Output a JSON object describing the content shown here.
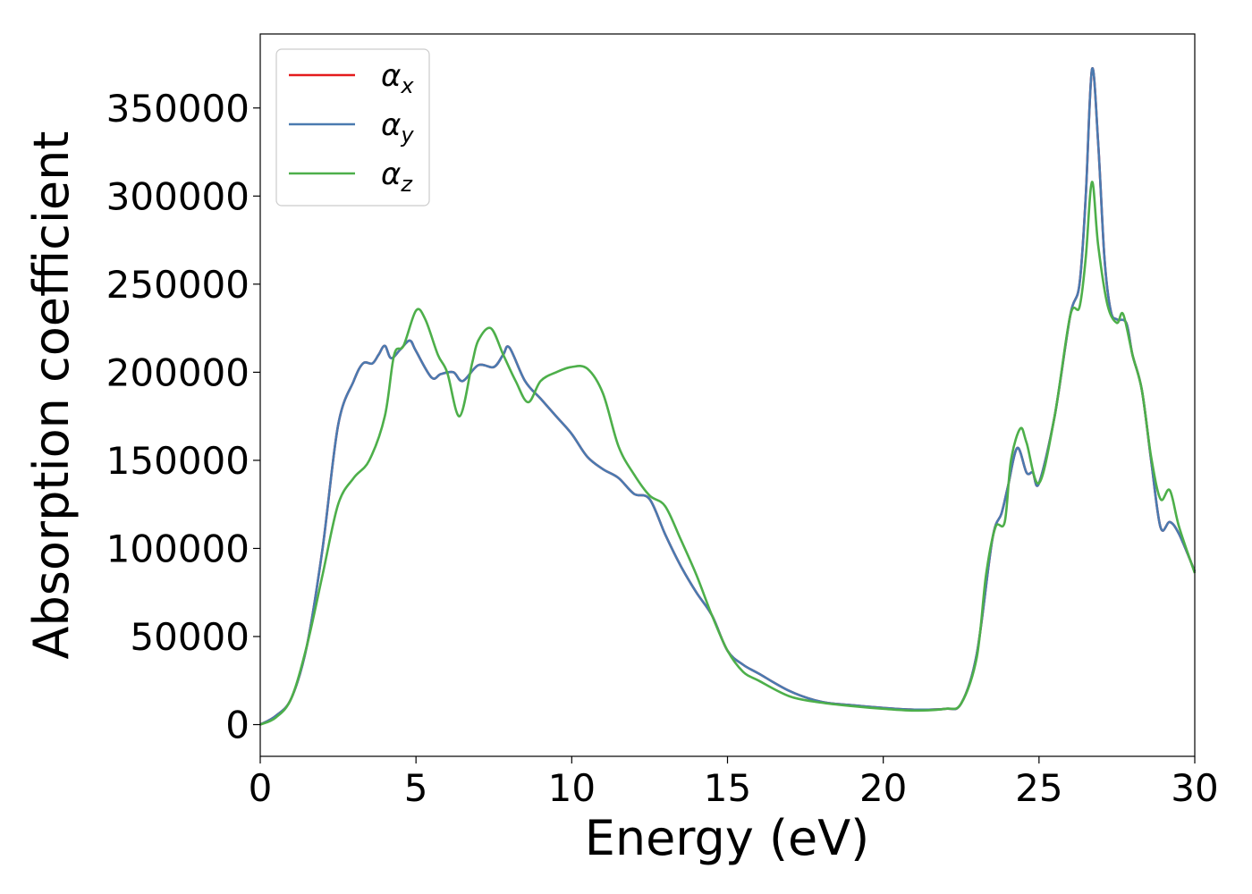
{
  "chart_data": {
    "type": "line",
    "xlabel": "Energy (eV)",
    "ylabel": "Absorption coefficient",
    "xlim": [
      0,
      30
    ],
    "ylim": [
      -18000,
      392000
    ],
    "xticks": [
      0,
      5,
      10,
      15,
      20,
      25,
      30
    ],
    "yticks": [
      0,
      50000,
      100000,
      150000,
      200000,
      250000,
      300000,
      350000
    ],
    "xtick_labels": [
      "0",
      "5",
      "10",
      "15",
      "20",
      "25",
      "30"
    ],
    "ytick_labels": [
      "0",
      "50000",
      "100000",
      "150000",
      "200000",
      "250000",
      "300000",
      "350000"
    ],
    "grid": false,
    "legend_position": "top-left",
    "series": [
      {
        "name": "αx",
        "symbol": "α",
        "subscript": "x",
        "color": "#e41a1c",
        "x": [
          0,
          0.5,
          1.0,
          1.5,
          2.0,
          2.5,
          3.0,
          3.3,
          3.6,
          3.8,
          4.0,
          4.2,
          4.5,
          4.8,
          5.0,
          5.5,
          5.8,
          6.2,
          6.5,
          7.0,
          7.5,
          7.8,
          8.0,
          8.5,
          9.0,
          9.5,
          10.0,
          10.5,
          11.0,
          11.5,
          12.0,
          12.5,
          13.0,
          13.5,
          14.0,
          14.5,
          15.0,
          15.5,
          16.0,
          17.0,
          18.0,
          19.0,
          20.0,
          21.0,
          22.0,
          22.5,
          23.0,
          23.5,
          23.8,
          24.0,
          24.3,
          24.6,
          24.8,
          25.0,
          25.5,
          26.0,
          26.3,
          26.5,
          26.7,
          26.9,
          27.1,
          27.3,
          27.5,
          27.8,
          28.0,
          28.3,
          28.6,
          28.9,
          29.2,
          29.5,
          30.0
        ],
        "y": [
          0,
          5000,
          15000,
          45000,
          100000,
          170000,
          195000,
          205000,
          205000,
          210000,
          215000,
          208000,
          213000,
          218000,
          212000,
          197000,
          199000,
          200000,
          195000,
          204000,
          203000,
          210000,
          214000,
          195000,
          185000,
          175000,
          165000,
          152000,
          145000,
          140000,
          131000,
          128000,
          108000,
          90000,
          75000,
          62000,
          42000,
          34000,
          29000,
          19000,
          13000,
          11000,
          9500,
          8500,
          9000,
          12000,
          40000,
          105000,
          120000,
          135000,
          157000,
          143000,
          143000,
          137000,
          175000,
          232000,
          250000,
          300000,
          372000,
          330000,
          265000,
          235000,
          230000,
          228000,
          210000,
          190000,
          150000,
          112000,
          115000,
          108000,
          87000
        ]
      },
      {
        "name": "αy",
        "symbol": "α",
        "subscript": "y",
        "color": "#4a7ab0",
        "x": [
          0,
          0.5,
          1.0,
          1.5,
          2.0,
          2.5,
          3.0,
          3.3,
          3.6,
          3.8,
          4.0,
          4.2,
          4.5,
          4.8,
          5.0,
          5.5,
          5.8,
          6.2,
          6.5,
          7.0,
          7.5,
          7.8,
          8.0,
          8.5,
          9.0,
          9.5,
          10.0,
          10.5,
          11.0,
          11.5,
          12.0,
          12.5,
          13.0,
          13.5,
          14.0,
          14.5,
          15.0,
          15.5,
          16.0,
          17.0,
          18.0,
          19.0,
          20.0,
          21.0,
          22.0,
          22.5,
          23.0,
          23.5,
          23.8,
          24.0,
          24.3,
          24.6,
          24.8,
          25.0,
          25.5,
          26.0,
          26.3,
          26.5,
          26.7,
          26.9,
          27.1,
          27.3,
          27.5,
          27.8,
          28.0,
          28.3,
          28.6,
          28.9,
          29.2,
          29.5,
          30.0
        ],
        "y": [
          0,
          5000,
          15000,
          45000,
          100000,
          170000,
          195000,
          205000,
          205000,
          210000,
          215000,
          208000,
          213000,
          218000,
          212000,
          197000,
          199000,
          200000,
          195000,
          204000,
          203000,
          210000,
          214000,
          195000,
          185000,
          175000,
          165000,
          152000,
          145000,
          140000,
          131000,
          128000,
          108000,
          90000,
          75000,
          62000,
          42000,
          34000,
          29000,
          19000,
          13000,
          11000,
          9500,
          8500,
          9000,
          12000,
          40000,
          105000,
          120000,
          135000,
          157000,
          143000,
          143000,
          137000,
          175000,
          232000,
          250000,
          300000,
          372000,
          330000,
          265000,
          235000,
          230000,
          228000,
          210000,
          190000,
          150000,
          112000,
          115000,
          108000,
          87000
        ]
      },
      {
        "name": "αz",
        "symbol": "α",
        "subscript": "z",
        "color": "#4daf4a",
        "x": [
          0,
          0.5,
          1.0,
          1.5,
          2.0,
          2.5,
          3.0,
          3.5,
          4.0,
          4.3,
          4.6,
          5.0,
          5.3,
          5.7,
          6.0,
          6.4,
          6.8,
          7.0,
          7.4,
          7.8,
          8.2,
          8.6,
          9.0,
          9.5,
          10.0,
          10.5,
          11.0,
          11.5,
          12.0,
          12.5,
          13.0,
          13.5,
          14.0,
          14.5,
          15.0,
          15.5,
          16.0,
          17.0,
          18.0,
          19.0,
          20.0,
          21.0,
          22.0,
          22.5,
          23.0,
          23.3,
          23.6,
          23.9,
          24.1,
          24.4,
          24.6,
          25.0,
          25.5,
          26.0,
          26.3,
          26.5,
          26.7,
          26.9,
          27.2,
          27.5,
          27.7,
          28.0,
          28.3,
          28.6,
          28.9,
          29.2,
          29.5,
          30.0
        ],
        "y": [
          0,
          4000,
          15000,
          45000,
          85000,
          125000,
          140000,
          150000,
          175000,
          210000,
          215000,
          235000,
          230000,
          210000,
          200000,
          175000,
          205000,
          218000,
          225000,
          210000,
          195000,
          183000,
          195000,
          200000,
          203000,
          202000,
          188000,
          158000,
          142000,
          130000,
          124000,
          105000,
          85000,
          62000,
          42000,
          30000,
          25000,
          16000,
          12500,
          10500,
          9000,
          8000,
          9000,
          12000,
          38000,
          85000,
          112000,
          115000,
          150000,
          168000,
          160000,
          137000,
          175000,
          232000,
          237000,
          265000,
          308000,
          272000,
          238000,
          228000,
          233000,
          210000,
          190000,
          152000,
          128000,
          133000,
          112000,
          86000
        ]
      }
    ]
  }
}
